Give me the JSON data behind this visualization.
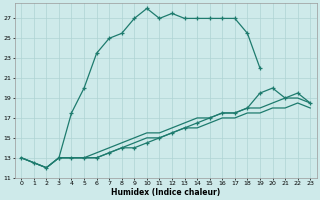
{
  "xlabel": "Humidex (Indice chaleur)",
  "background_color": "#ceeaea",
  "grid_color": "#afd4d4",
  "line_color": "#1e7b6e",
  "xlim": [
    -0.5,
    23.5
  ],
  "ylim": [
    11,
    28.5
  ],
  "yticks": [
    11,
    13,
    15,
    17,
    19,
    21,
    23,
    25,
    27
  ],
  "xticks": [
    0,
    1,
    2,
    3,
    4,
    5,
    6,
    7,
    8,
    9,
    10,
    11,
    12,
    13,
    14,
    15,
    16,
    17,
    18,
    19,
    20,
    21,
    22,
    23
  ],
  "series1_x": [
    0,
    1,
    2,
    3,
    4,
    5,
    6,
    7,
    8,
    9,
    10,
    11,
    12,
    13,
    14,
    15,
    16,
    17,
    18,
    19
  ],
  "series1_y": [
    13,
    12.5,
    12,
    13,
    17.5,
    20,
    23.5,
    25,
    25.5,
    27,
    28,
    27,
    27.5,
    27,
    27,
    27,
    27,
    27,
    25.5,
    22
  ],
  "series2_x": [
    0,
    1,
    2,
    3,
    4,
    5,
    6,
    7,
    8,
    9,
    10,
    11,
    12,
    13,
    14,
    15,
    16,
    17,
    18,
    19,
    20,
    21,
    22,
    23
  ],
  "series2_y": [
    13,
    12.5,
    12,
    13,
    13,
    13,
    13.5,
    14,
    14.5,
    15,
    15.5,
    15.5,
    16,
    16.5,
    17,
    17,
    17.5,
    17.5,
    18,
    18,
    18.5,
    19,
    19,
    18.5
  ],
  "series3_x": [
    0,
    1,
    2,
    3,
    4,
    5,
    6,
    7,
    8,
    9,
    10,
    11,
    12,
    13,
    14,
    15,
    16,
    17,
    18,
    19,
    20,
    21,
    22,
    23
  ],
  "series3_y": [
    13,
    12.5,
    12,
    13,
    13,
    13,
    13,
    13.5,
    14,
    14.5,
    15,
    15,
    15.5,
    16,
    16,
    16.5,
    17,
    17,
    17.5,
    17.5,
    18,
    18,
    18.5,
    18
  ],
  "series4_x": [
    3,
    4,
    5,
    6,
    7,
    8,
    9,
    10,
    11,
    12,
    13,
    14,
    15,
    16,
    17,
    18,
    19,
    20,
    21,
    22,
    23
  ],
  "series4_y": [
    13,
    13,
    13,
    13,
    13.5,
    14,
    14,
    14.5,
    15,
    15.5,
    16,
    16.5,
    17,
    17.5,
    17.5,
    18,
    19.5,
    20,
    19,
    19.5,
    18.5
  ]
}
